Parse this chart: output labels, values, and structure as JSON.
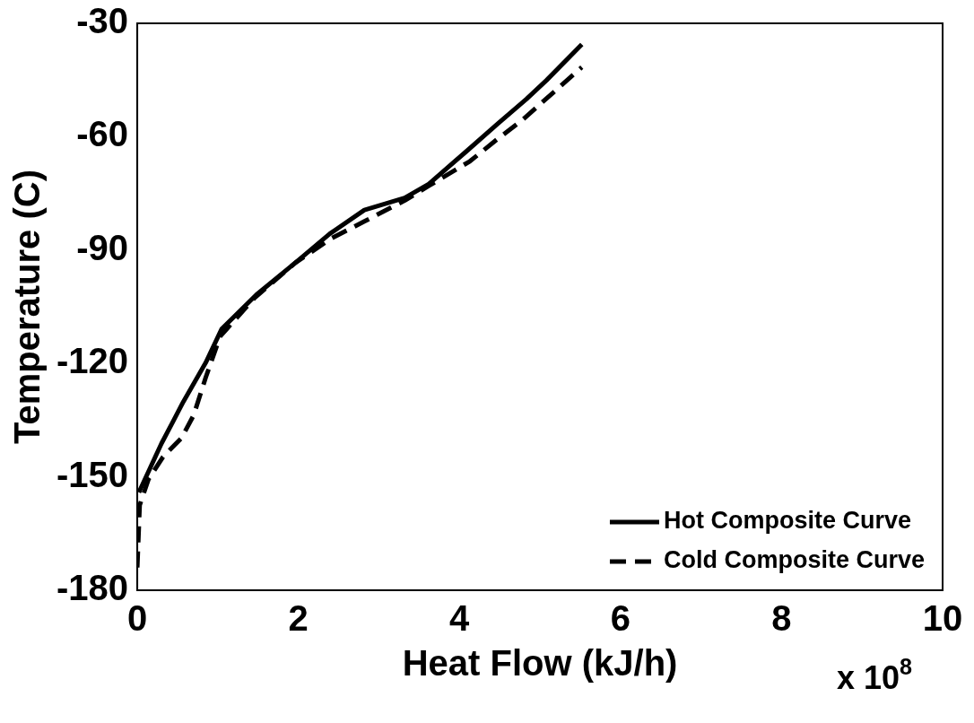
{
  "chart_data": {
    "type": "line",
    "xlabel": "Heat Flow (kJ/h)",
    "ylabel": "Temperature (C)",
    "annotations": [
      "x 10$^{8}$"
    ],
    "xlim": [
      0,
      10
    ],
    "xticks": [
      0,
      2,
      4,
      6,
      8,
      10
    ],
    "ylim": [
      -180,
      -30
    ],
    "yticks": [
      -180,
      -150,
      -120,
      -90,
      -60,
      -30
    ],
    "grid": false,
    "legend": "bottom right",
    "marker": "none",
    "series": [
      {
        "name": "Hot Composite Curve",
        "color": "#000000",
        "line_style": "solid",
        "x": [
          0.02,
          0.3,
          0.45,
          0.57,
          0.85,
          1.05,
          1.48,
          1.96,
          2.39,
          2.82,
          3.32,
          3.62,
          4.08,
          4.48,
          4.83,
          5.08,
          5.52
        ],
        "values": [
          -154.1,
          -141.2,
          -135.1,
          -130.2,
          -119.8,
          -110.8,
          -101.8,
          -93.4,
          -85.7,
          -79.4,
          -76.2,
          -72.5,
          -64.0,
          -56.5,
          -50.1,
          -45.1,
          -35.6
        ]
      },
      {
        "name": "Cold Composite Curve",
        "color": "#000000",
        "line_style": "dashed",
        "x": [
          0.0,
          0.03,
          0.14,
          0.32,
          0.55,
          0.7,
          0.85,
          1.03,
          1.45,
          1.96,
          2.41,
          2.82,
          3.32,
          3.62,
          4.13,
          4.48,
          4.78,
          5.52
        ],
        "values": [
          -174.0,
          -157.5,
          -150.6,
          -144.7,
          -139.7,
          -133.7,
          -123.7,
          -112.8,
          -102.8,
          -93.4,
          -86.9,
          -82.4,
          -76.9,
          -73.0,
          -66.5,
          -60.5,
          -55.6,
          -41.6
        ]
      }
    ]
  }
}
